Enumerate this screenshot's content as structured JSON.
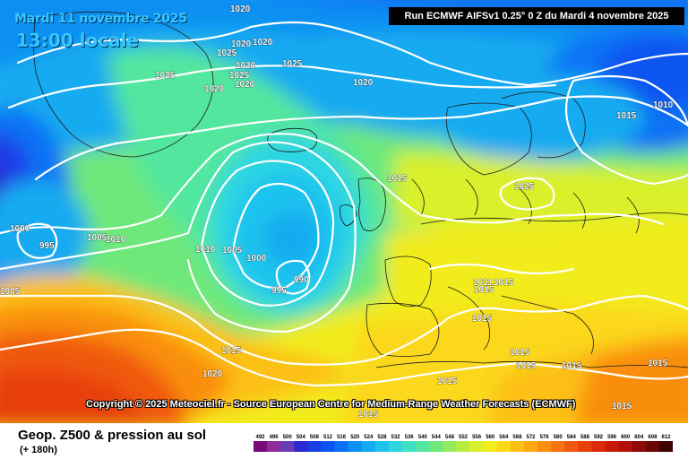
{
  "header": {
    "date": "Mardi 11 novembre 2025",
    "time": "13:00 locale",
    "run": "Run ECMWF AIFSv1 0.25° 0 Z du Mardi 4 novembre 2025"
  },
  "copyright": "Copyright © 2025 Meteociel.fr - Source European Centre for Medium-Range Weather Forecasts (ECMWF)",
  "legend": {
    "title": "Geop. Z500 & pression au sol",
    "subtitle": "(+ 180h)",
    "values": [
      "492",
      "496",
      "500",
      "504",
      "508",
      "512",
      "516",
      "520",
      "524",
      "528",
      "532",
      "536",
      "540",
      "544",
      "548",
      "552",
      "556",
      "560",
      "564",
      "568",
      "572",
      "576",
      "580",
      "584",
      "588",
      "592",
      "596",
      "600",
      "604",
      "608",
      "612"
    ],
    "colors": [
      "#7a0a7a",
      "#8e2c9a",
      "#6b3cb8",
      "#2b2bd0",
      "#1a3ee6",
      "#0a55f0",
      "#0a72f5",
      "#0b8ff2",
      "#12aaf0",
      "#1ec2ee",
      "#2fd6e2",
      "#3fe0c4",
      "#52e69e",
      "#6ee87a",
      "#92eb5a",
      "#b7ee40",
      "#d9f02c",
      "#f2ec1e",
      "#fbd81a",
      "#fcc015",
      "#fba812",
      "#f98e10",
      "#f5740e",
      "#f0580c",
      "#e8400a",
      "#dc2a08",
      "#c81a06",
      "#b01006",
      "#8e0a06",
      "#6a0604",
      "#3e0202"
    ]
  },
  "map": {
    "isobar_labels": [
      {
        "text": "1020"
      },
      {
        "text": "1020"
      },
      {
        "text": "1020"
      },
      {
        "text": "1025"
      },
      {
        "text": "1020"
      },
      {
        "text": "1025"
      },
      {
        "text": "1025"
      },
      {
        "text": "1020"
      },
      {
        "text": "1020"
      },
      {
        "text": "1020"
      },
      {
        "text": "1025"
      },
      {
        "text": "1015"
      },
      {
        "text": "1010"
      },
      {
        "text": "1015"
      },
      {
        "text": "1025"
      },
      {
        "text": "1000"
      },
      {
        "text": "995"
      },
      {
        "text": "1005"
      },
      {
        "text": "1010"
      },
      {
        "text": "1010"
      },
      {
        "text": "1005"
      },
      {
        "text": "1000"
      },
      {
        "text": "995"
      },
      {
        "text": "990"
      },
      {
        "text": "1005"
      },
      {
        "text": "1011"
      },
      {
        "text": "1015"
      },
      {
        "text": "1015"
      },
      {
        "text": "1015"
      },
      {
        "text": "1015"
      },
      {
        "text": "1015"
      },
      {
        "text": "1015"
      },
      {
        "text": "1015"
      },
      {
        "text": "1015"
      },
      {
        "text": "1020"
      },
      {
        "text": "1015"
      },
      {
        "text": "1015"
      },
      {
        "text": "1015"
      }
    ]
  }
}
